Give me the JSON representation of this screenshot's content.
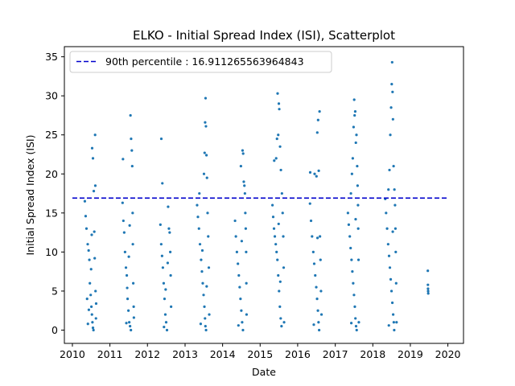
{
  "chart_data": {
    "type": "scatter",
    "title": "ELKO - Initial Spread Index (ISI), Scatterplot",
    "xlabel": "Date",
    "ylabel": "Initial Spread Index (ISI)",
    "xlim": [
      "2009-10-15",
      "2020-06-01"
    ],
    "ylim": [
      -1.7,
      36.3
    ],
    "x_ticks": [
      "2010",
      "2011",
      "2012",
      "2013",
      "2014",
      "2015",
      "2016",
      "2017",
      "2018",
      "2019",
      "2020"
    ],
    "y_ticks": [
      0,
      5,
      10,
      15,
      20,
      25,
      30,
      35
    ],
    "grid": false,
    "legend_position": "top-left",
    "point_color": "#1f77b4",
    "reference_line": {
      "label": "90th percentile : 16.911265563964843",
      "value": 16.911265563964843,
      "x_range": [
        "2010-01-01",
        "2020-01-01"
      ],
      "color": "#0000cc",
      "style": "dashed"
    },
    "series": [
      {
        "points": [
          [
            "2010-05-02",
            16.5
          ],
          [
            "2010-05-10",
            14.6
          ],
          [
            "2010-05-18",
            13.0
          ],
          [
            "2010-05-30",
            11.0
          ],
          [
            "2010-06-08",
            10.2
          ],
          [
            "2010-06-15",
            9.0
          ],
          [
            "2010-06-20",
            6.0
          ],
          [
            "2010-06-28",
            4.5
          ],
          [
            "2010-07-05",
            3.0
          ],
          [
            "2010-07-10",
            2.0
          ],
          [
            "2010-07-15",
            1.0
          ],
          [
            "2010-07-20",
            0.3
          ],
          [
            "2010-07-25",
            0.0
          ],
          [
            "2010-07-12",
            23.3
          ],
          [
            "2010-07-20",
            22.0
          ],
          [
            "2010-07-28",
            17.8
          ],
          [
            "2010-08-02",
            12.6
          ],
          [
            "2010-08-06",
            9.2
          ],
          [
            "2010-08-10",
            25.0
          ],
          [
            "2010-08-12",
            18.5
          ],
          [
            "2010-08-14",
            5.0
          ],
          [
            "2010-08-18",
            1.5
          ],
          [
            "2010-06-01",
            0.8
          ],
          [
            "2010-06-10",
            2.6
          ],
          [
            "2010-07-02",
            7.8
          ],
          [
            "2010-08-20",
            3.4
          ],
          [
            "2010-05-24",
            4.0
          ],
          [
            "2010-07-08",
            12.2
          ],
          [
            "2011-05-04",
            16.3
          ],
          [
            "2011-05-12",
            14.0
          ],
          [
            "2011-05-20",
            12.5
          ],
          [
            "2011-05-28",
            10.0
          ],
          [
            "2011-06-06",
            8.0
          ],
          [
            "2011-06-14",
            7.0
          ],
          [
            "2011-06-22",
            4.0
          ],
          [
            "2011-06-30",
            2.5
          ],
          [
            "2011-07-08",
            1.0
          ],
          [
            "2011-07-16",
            0.5
          ],
          [
            "2011-07-24",
            0.0
          ],
          [
            "2011-05-08",
            21.9
          ],
          [
            "2011-07-20",
            27.5
          ],
          [
            "2011-07-26",
            24.5
          ],
          [
            "2011-08-02",
            23.0
          ],
          [
            "2011-08-06",
            21.0
          ],
          [
            "2011-08-10",
            15.0
          ],
          [
            "2011-08-12",
            11.0
          ],
          [
            "2011-08-16",
            6.0
          ],
          [
            "2011-08-20",
            3.0
          ],
          [
            "2011-06-10",
            0.9
          ],
          [
            "2011-06-18",
            5.4
          ],
          [
            "2011-07-04",
            9.4
          ],
          [
            "2011-07-12",
            13.4
          ],
          [
            "2011-08-22",
            1.6
          ],
          [
            "2012-05-06",
            13.5
          ],
          [
            "2012-05-14",
            11.0
          ],
          [
            "2012-05-22",
            9.5
          ],
          [
            "2012-05-30",
            8.0
          ],
          [
            "2012-06-07",
            6.0
          ],
          [
            "2012-06-15",
            4.0
          ],
          [
            "2012-06-23",
            2.0
          ],
          [
            "2012-07-01",
            1.0
          ],
          [
            "2012-07-09",
            0.0
          ],
          [
            "2012-05-15",
            24.5
          ],
          [
            "2012-05-25",
            18.8
          ],
          [
            "2012-07-20",
            15.8
          ],
          [
            "2012-07-28",
            13.0
          ],
          [
            "2012-08-04",
            12.5
          ],
          [
            "2012-08-10",
            10.0
          ],
          [
            "2012-08-14",
            7.0
          ],
          [
            "2012-08-18",
            3.0
          ],
          [
            "2012-06-10",
            0.4
          ],
          [
            "2012-06-26",
            5.2
          ],
          [
            "2012-07-16",
            8.6
          ],
          [
            "2013-04-28",
            16.0
          ],
          [
            "2013-05-06",
            14.5
          ],
          [
            "2013-05-16",
            13.0
          ],
          [
            "2013-05-26",
            11.0
          ],
          [
            "2013-06-06",
            9.0
          ],
          [
            "2013-06-14",
            7.5
          ],
          [
            "2013-06-22",
            6.0
          ],
          [
            "2013-06-30",
            4.5
          ],
          [
            "2013-07-08",
            3.0
          ],
          [
            "2013-07-14",
            1.5
          ],
          [
            "2013-07-18",
            0.5
          ],
          [
            "2013-07-24",
            0.0
          ],
          [
            "2013-05-20",
            17.5
          ],
          [
            "2013-07-04",
            20.0
          ],
          [
            "2013-07-10",
            22.7
          ],
          [
            "2013-07-15",
            26.6
          ],
          [
            "2013-07-19",
            29.7
          ],
          [
            "2013-07-23",
            26.1
          ],
          [
            "2013-07-28",
            22.4
          ],
          [
            "2013-08-02",
            19.5
          ],
          [
            "2013-08-08",
            15.0
          ],
          [
            "2013-08-14",
            12.0
          ],
          [
            "2013-08-20",
            8.0
          ],
          [
            "2013-08-24",
            2.0
          ],
          [
            "2013-06-02",
            0.8
          ],
          [
            "2013-06-18",
            10.2
          ],
          [
            "2013-07-30",
            5.6
          ],
          [
            "2014-05-02",
            14.0
          ],
          [
            "2014-05-10",
            12.0
          ],
          [
            "2014-05-20",
            10.0
          ],
          [
            "2014-05-30",
            8.5
          ],
          [
            "2014-06-08",
            7.0
          ],
          [
            "2014-06-16",
            5.5
          ],
          [
            "2014-06-24",
            4.0
          ],
          [
            "2014-07-02",
            2.5
          ],
          [
            "2014-07-10",
            1.0
          ],
          [
            "2014-07-18",
            0.0
          ],
          [
            "2014-06-28",
            21.0
          ],
          [
            "2014-07-14",
            23.0
          ],
          [
            "2014-07-20",
            22.6
          ],
          [
            "2014-07-26",
            19.0
          ],
          [
            "2014-08-01",
            18.5
          ],
          [
            "2014-08-06",
            17.5
          ],
          [
            "2014-08-10",
            15.0
          ],
          [
            "2014-08-14",
            13.0
          ],
          [
            "2014-08-18",
            10.0
          ],
          [
            "2014-08-20",
            6.0
          ],
          [
            "2014-08-22",
            2.0
          ],
          [
            "2014-06-04",
            0.6
          ],
          [
            "2014-07-06",
            11.4
          ],
          [
            "2015-05-01",
            16.0
          ],
          [
            "2015-05-08",
            14.5
          ],
          [
            "2015-05-16",
            13.0
          ],
          [
            "2015-05-24",
            12.0
          ],
          [
            "2015-06-02",
            11.0
          ],
          [
            "2015-06-10",
            10.0
          ],
          [
            "2015-06-18",
            9.0
          ],
          [
            "2015-06-26",
            7.0
          ],
          [
            "2015-07-04",
            5.0
          ],
          [
            "2015-07-12",
            3.0
          ],
          [
            "2015-07-20",
            1.5
          ],
          [
            "2015-07-28",
            0.5
          ],
          [
            "2015-05-18",
            21.7
          ],
          [
            "2015-06-06",
            22.0
          ],
          [
            "2015-06-14",
            24.5
          ],
          [
            "2015-06-20",
            30.3
          ],
          [
            "2015-06-26",
            25.0
          ],
          [
            "2015-07-02",
            29.0
          ],
          [
            "2015-07-06",
            28.3
          ],
          [
            "2015-07-14",
            23.5
          ],
          [
            "2015-07-22",
            20.5
          ],
          [
            "2015-08-01",
            17.5
          ],
          [
            "2015-08-08",
            15.0
          ],
          [
            "2015-08-14",
            12.0
          ],
          [
            "2015-08-18",
            8.0
          ],
          [
            "2015-08-22",
            1.0
          ],
          [
            "2015-06-30",
            13.6
          ],
          [
            "2015-07-16",
            6.2
          ],
          [
            "2016-04-30",
            16.2
          ],
          [
            "2016-05-10",
            14.0
          ],
          [
            "2016-05-20",
            12.0
          ],
          [
            "2016-06-01",
            10.0
          ],
          [
            "2016-06-10",
            8.5
          ],
          [
            "2016-06-20",
            7.0
          ],
          [
            "2016-06-30",
            5.5
          ],
          [
            "2016-07-08",
            4.0
          ],
          [
            "2016-07-16",
            2.5
          ],
          [
            "2016-07-22",
            1.0
          ],
          [
            "2016-07-28",
            0.0
          ],
          [
            "2016-05-02",
            20.2
          ],
          [
            "2016-06-14",
            20.0
          ],
          [
            "2016-07-02",
            19.7
          ],
          [
            "2016-07-10",
            25.3
          ],
          [
            "2016-07-18",
            26.9
          ],
          [
            "2016-07-24",
            20.4
          ],
          [
            "2016-08-01",
            28.0
          ],
          [
            "2016-08-05",
            12.0
          ],
          [
            "2016-08-10",
            9.0
          ],
          [
            "2016-08-15",
            5.0
          ],
          [
            "2016-08-20",
            2.0
          ],
          [
            "2016-06-06",
            0.7
          ],
          [
            "2016-07-12",
            11.8
          ],
          [
            "2017-05-04",
            15.0
          ],
          [
            "2017-05-12",
            13.5
          ],
          [
            "2017-05-22",
            12.0
          ],
          [
            "2017-05-30",
            10.5
          ],
          [
            "2017-06-08",
            9.0
          ],
          [
            "2017-06-16",
            7.5
          ],
          [
            "2017-06-24",
            6.0
          ],
          [
            "2017-07-02",
            4.5
          ],
          [
            "2017-07-10",
            3.0
          ],
          [
            "2017-07-16",
            1.5
          ],
          [
            "2017-07-22",
            0.5
          ],
          [
            "2017-07-28",
            0.0
          ],
          [
            "2017-06-02",
            17.5
          ],
          [
            "2017-06-12",
            20.0
          ],
          [
            "2017-06-20",
            22.0
          ],
          [
            "2017-06-28",
            26.0
          ],
          [
            "2017-07-04",
            29.5
          ],
          [
            "2017-07-08",
            27.5
          ],
          [
            "2017-07-14",
            28.0
          ],
          [
            "2017-07-20",
            24.0
          ],
          [
            "2017-07-26",
            25.0
          ],
          [
            "2017-08-02",
            21.0
          ],
          [
            "2017-08-06",
            18.5
          ],
          [
            "2017-08-10",
            16.0
          ],
          [
            "2017-08-12",
            13.0
          ],
          [
            "2017-08-15",
            9.0
          ],
          [
            "2017-08-18",
            1.0
          ],
          [
            "2017-06-06",
            0.9
          ],
          [
            "2017-07-18",
            14.2
          ],
          [
            "2018-05-02",
            16.8
          ],
          [
            "2018-05-10",
            15.0
          ],
          [
            "2018-05-20",
            13.0
          ],
          [
            "2018-05-30",
            11.0
          ],
          [
            "2018-06-08",
            9.5
          ],
          [
            "2018-06-16",
            8.0
          ],
          [
            "2018-06-24",
            6.5
          ],
          [
            "2018-07-02",
            5.0
          ],
          [
            "2018-07-10",
            3.5
          ],
          [
            "2018-07-18",
            2.0
          ],
          [
            "2018-07-24",
            1.0
          ],
          [
            "2018-07-28",
            0.0
          ],
          [
            "2018-06-02",
            18.0
          ],
          [
            "2018-06-12",
            20.5
          ],
          [
            "2018-06-20",
            25.0
          ],
          [
            "2018-06-28",
            28.5
          ],
          [
            "2018-07-04",
            31.5
          ],
          [
            "2018-07-08",
            34.3
          ],
          [
            "2018-07-12",
            30.5
          ],
          [
            "2018-07-16",
            27.0
          ],
          [
            "2018-07-22",
            21.0
          ],
          [
            "2018-07-30",
            18.0
          ],
          [
            "2018-08-05",
            16.0
          ],
          [
            "2018-08-09",
            13.0
          ],
          [
            "2018-08-12",
            10.0
          ],
          [
            "2018-08-16",
            6.0
          ],
          [
            "2018-08-20",
            1.0
          ],
          [
            "2018-06-06",
            0.6
          ],
          [
            "2018-07-14",
            12.6
          ],
          [
            "2019-06-20",
            7.6
          ],
          [
            "2019-06-21",
            5.8
          ],
          [
            "2019-06-22",
            5.3
          ],
          [
            "2019-06-23",
            5.0
          ],
          [
            "2019-06-24",
            4.7
          ]
        ]
      }
    ]
  }
}
